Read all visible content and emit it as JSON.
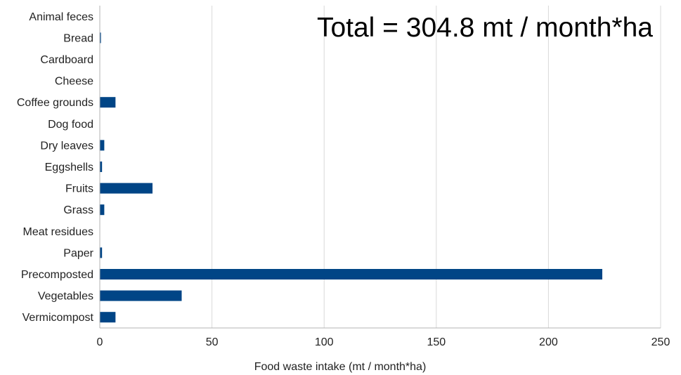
{
  "chart_data": {
    "type": "bar",
    "orientation": "horizontal",
    "categories": [
      "Animal feces",
      "Bread",
      "Cardboard",
      "Cheese",
      "Coffee grounds",
      "Dog food",
      "Dry leaves",
      "Eggshells",
      "Fruits",
      "Grass",
      "Meat residues",
      "Paper",
      "Precomposted",
      "Vegetables",
      "Vermicompost"
    ],
    "values": [
      0,
      0.5,
      0,
      0,
      7,
      0,
      2,
      1,
      23.5,
      2,
      0,
      1,
      224,
      36.5,
      7
    ],
    "xlabel": "Food waste intake (mt / month*ha)",
    "xlim": [
      0,
      250
    ],
    "xticks": [
      0,
      50,
      100,
      150,
      200,
      250
    ],
    "annotation": "Total = 304.8 mt / month*ha",
    "grid": true,
    "bar_color": "#004586"
  }
}
